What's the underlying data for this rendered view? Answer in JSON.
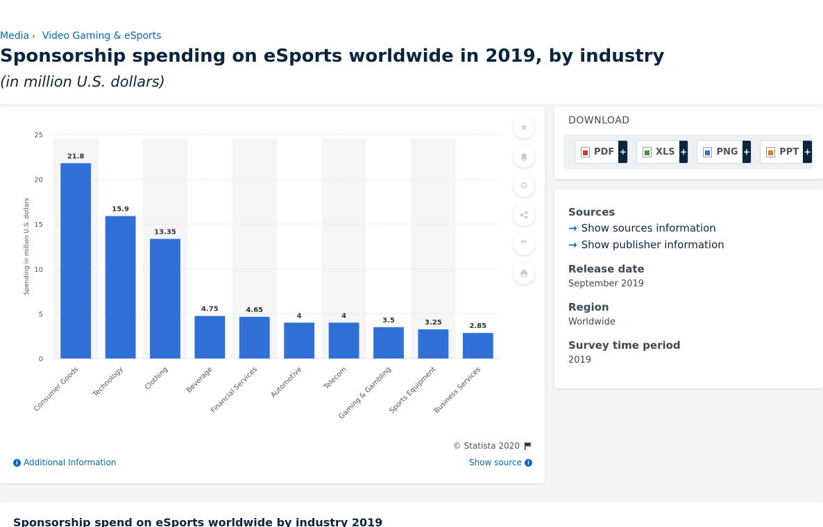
{
  "breadcrumb": {
    "root": "Media",
    "separator": "›",
    "current": "Video Gaming & eSports"
  },
  "page": {
    "title": "Sponsorship spending on eSports worldwide in 2019, by industry",
    "subtitle": "(in million U.S. dollars)"
  },
  "chart_data": {
    "type": "bar",
    "categories": [
      "Consumer Goods",
      "Technology",
      "Clothing",
      "Beverage",
      "Financial Services",
      "Automotive",
      "Telecom",
      "Gaming & Gambling",
      "Sports Equipment",
      "Business Services"
    ],
    "values": [
      21.8,
      15.9,
      13.35,
      4.75,
      4.65,
      4,
      4,
      3.5,
      3.25,
      2.85
    ],
    "value_labels": [
      "21.8",
      "15.9",
      "13.35",
      "4.75",
      "4.65",
      "4",
      "4",
      "3.5",
      "3.25",
      "2.85"
    ],
    "xlabel": "",
    "ylabel": "Spending in million U.S. dollars",
    "ylim": [
      0,
      25
    ],
    "yticks": [
      0,
      5,
      10,
      15,
      20,
      25
    ],
    "grid": true,
    "bar_color": "#2f6fd6"
  },
  "chart_footer": {
    "credit": "© Statista 2020",
    "additional_info": "Additional Information",
    "show_source": "Show source"
  },
  "toolbar": {
    "icons": [
      "star-icon",
      "bell-icon",
      "gear-icon",
      "share-icon",
      "quote-icon",
      "print-icon"
    ]
  },
  "download": {
    "title": "DOWNLOAD",
    "buttons": [
      {
        "label": "PDF",
        "plus": "+",
        "color": "#d9342b"
      },
      {
        "label": "XLS",
        "plus": "+",
        "color": "#3a9a3a"
      },
      {
        "label": "PNG",
        "plus": "+",
        "color": "#2f6fd6"
      },
      {
        "label": "PPT",
        "plus": "+",
        "color": "#e07b2a"
      }
    ]
  },
  "info": {
    "sources_heading": "Sources",
    "show_sources": "Show sources information",
    "show_publisher": "Show publisher information",
    "release_heading": "Release date",
    "release_value": "September 2019",
    "region_heading": "Region",
    "region_value": "Worldwide",
    "survey_heading": "Survey time period",
    "survey_value": "2019"
  },
  "bottom": {
    "title": "Sponsorship spend on eSports worldwide by industry 2019"
  }
}
